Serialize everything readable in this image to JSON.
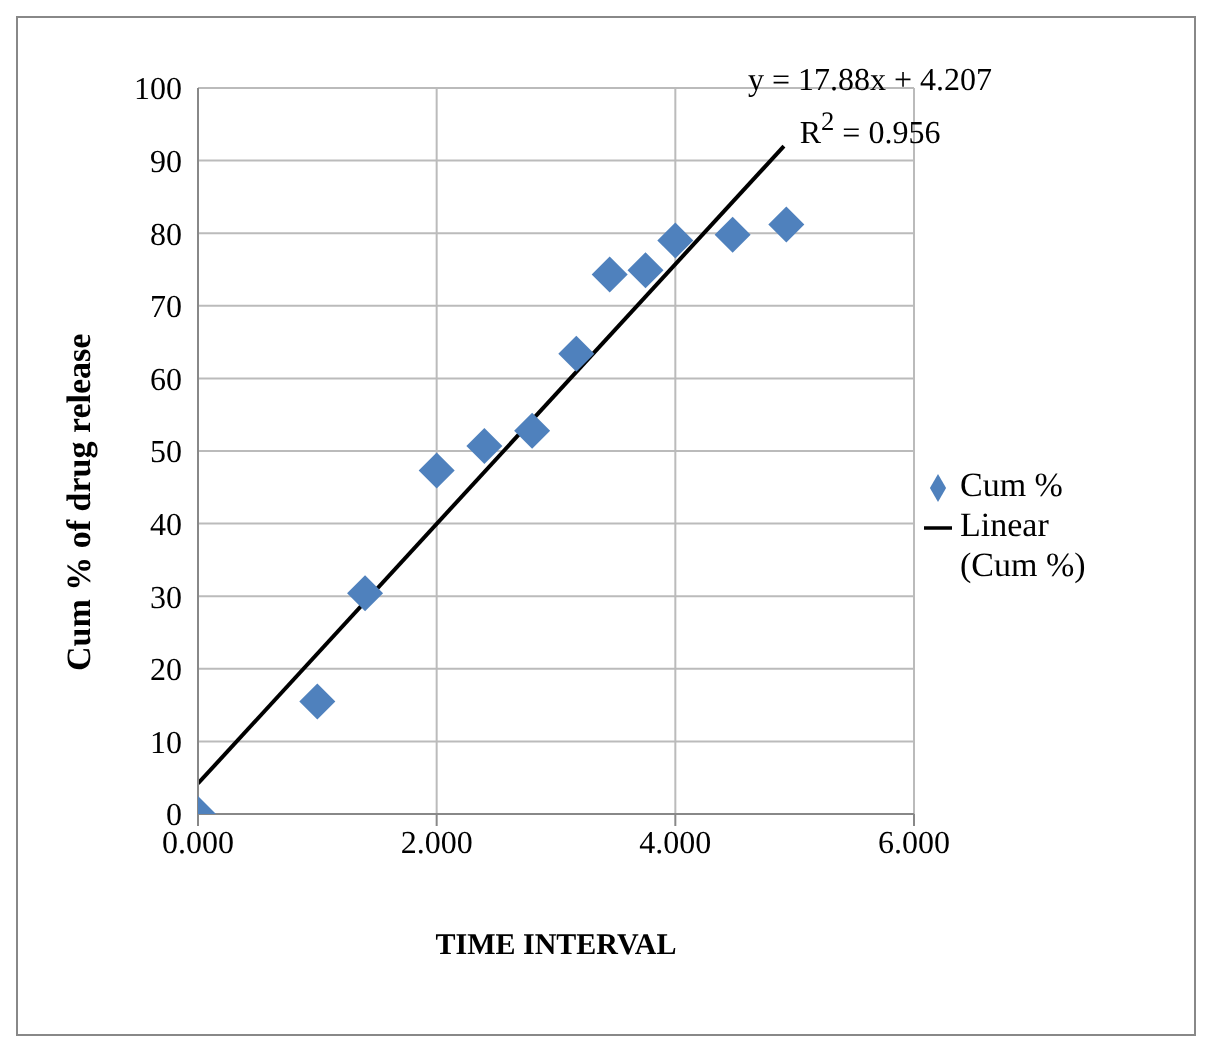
{
  "chart_data": {
    "type": "scatter",
    "xlabel": "TIME INTERVAL",
    "ylabel": "Cum  %  of  drug  release",
    "xlim": [
      0,
      6
    ],
    "xticks": [
      {
        "value": 0,
        "label": "0.000"
      },
      {
        "value": 2,
        "label": "2.000"
      },
      {
        "value": 4,
        "label": "4.000"
      },
      {
        "value": 6,
        "label": "6.000"
      }
    ],
    "ylim": [
      0,
      100
    ],
    "yticks": [
      0,
      10,
      20,
      30,
      40,
      50,
      60,
      70,
      80,
      90,
      100
    ],
    "grid": true,
    "legend": "right",
    "annotations": [
      "y = 17.88x + 4.207",
      "R$^{2}$ = 0.956"
    ],
    "series": [
      {
        "name": "Cum %",
        "marker": "diamond",
        "color": "#4f81bd",
        "x": [
          0,
          1,
          1.4,
          2,
          2.4,
          2.8,
          3.17,
          3.45,
          3.75,
          4,
          4.48,
          4.93
        ],
        "values": [
          0,
          15.5,
          30.4,
          47.3,
          50.7,
          52.8,
          63.4,
          74.3,
          74.9,
          79,
          79.8,
          81.2
        ]
      },
      {
        "name": "Linear (Cum %)",
        "type": "line",
        "marker": "none",
        "line_style": "solid",
        "color": "#000000",
        "x": [
          0,
          4.91
        ],
        "values": [
          4.2,
          92
        ]
      }
    ]
  }
}
